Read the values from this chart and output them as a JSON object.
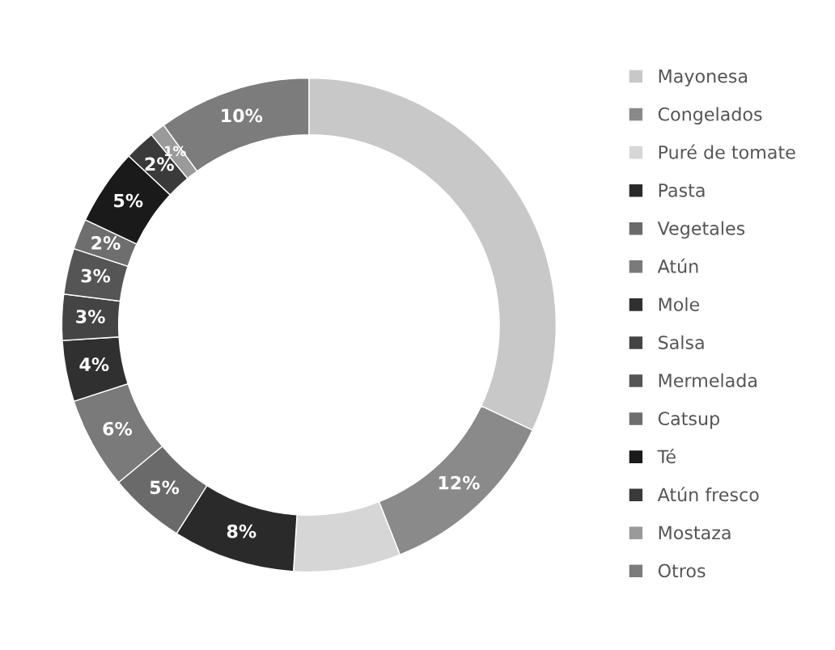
{
  "chart_data": {
    "type": "donut",
    "categories": [
      "Mayonesa",
      "Congelados",
      "Puré de tomate",
      "Pasta",
      "Vegetales",
      "Atún",
      "Mole",
      "Salsa",
      "Mermelada",
      "Catsup",
      "Té",
      "Atún fresco",
      "Mostaza",
      "Otros"
    ],
    "values": [
      32,
      12,
      7,
      8,
      5,
      6,
      4,
      3,
      3,
      2,
      5,
      2,
      1,
      10
    ],
    "value_labels": [
      null,
      "12%",
      null,
      "8%",
      "5%",
      "6%",
      "4%",
      "3%",
      "3%",
      "2%",
      "5%",
      "2%",
      "1%",
      "10%"
    ],
    "colors": [
      "#c8c8c8",
      "#8a8a8a",
      "#d6d6d6",
      "#2a2a2a",
      "#6a6a6a",
      "#7a7a7a",
      "#303030",
      "#444444",
      "#555555",
      "#6e6e6e",
      "#1a1a1a",
      "#3a3a3a",
      "#9a9a9a",
      "#7c7c7c"
    ],
    "legend": "right"
  }
}
